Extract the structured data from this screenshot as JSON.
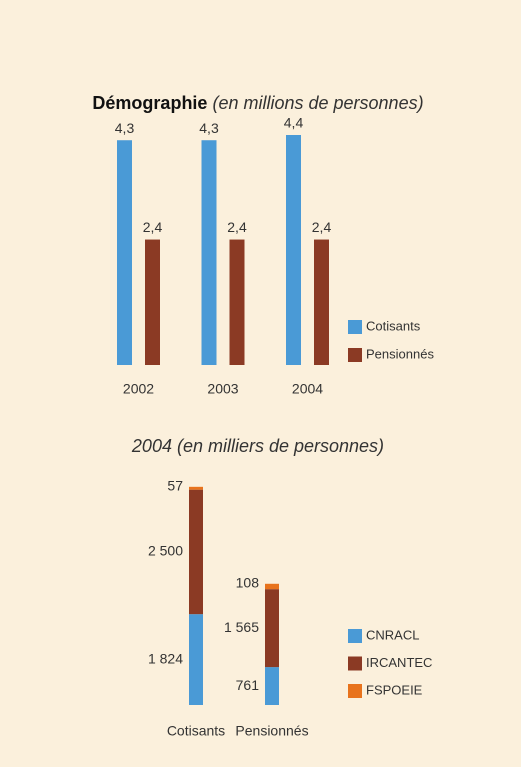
{
  "chart_data": [
    {
      "type": "bar",
      "title": "Démographie",
      "subtitle": "(en millions de personnes)",
      "categories": [
        "2002",
        "2003",
        "2004"
      ],
      "series": [
        {
          "name": "Cotisants",
          "color": "#4a9ad6",
          "values": [
            4.3,
            4.3,
            4.4
          ],
          "value_labels": [
            "4,3",
            "4,3",
            "4,4"
          ]
        },
        {
          "name": "Pensionnés",
          "color": "#8b3a24",
          "values": [
            2.4,
            2.4,
            2.4
          ],
          "value_labels": [
            "2,4",
            "2,4",
            "2,4"
          ]
        }
      ]
    },
    {
      "type": "stacked_bar",
      "title": "2004 (en milliers de personnes)",
      "categories": [
        "Cotisants",
        "Pensionnés"
      ],
      "series": [
        {
          "name": "CNRACL",
          "color": "#4a9ad6",
          "values": [
            1824,
            761
          ],
          "value_labels": [
            "1 824",
            "761"
          ]
        },
        {
          "name": "IRCANTEC",
          "color": "#8b3a24",
          "values": [
            2500,
            1565
          ],
          "value_labels": [
            "2 500",
            "1 565"
          ]
        },
        {
          "name": "FSPOEIE",
          "color": "#e8731c",
          "values": [
            57,
            108
          ],
          "value_labels": [
            "57",
            "108"
          ]
        }
      ]
    }
  ]
}
